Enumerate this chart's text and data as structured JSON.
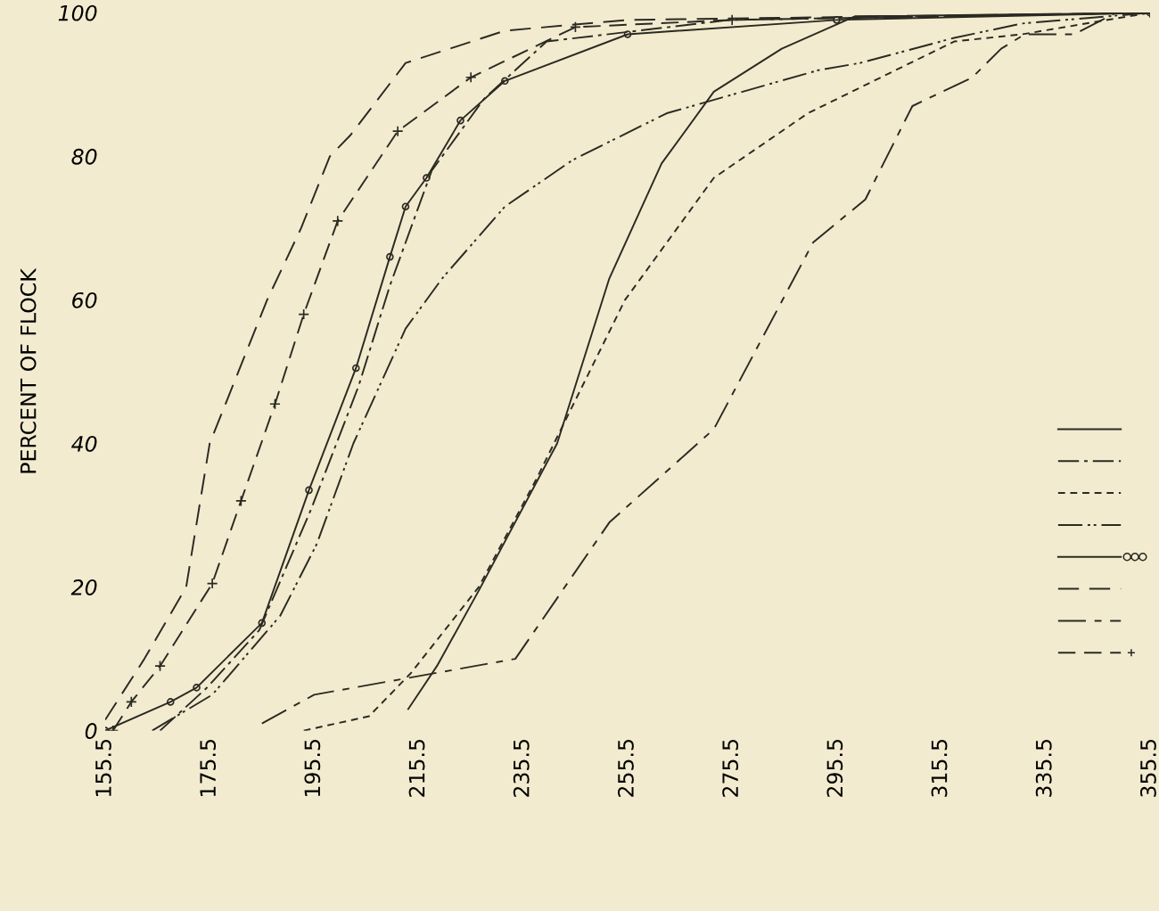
{
  "chart_data": {
    "type": "line",
    "ylabel": "PERCENT OF FLOCK",
    "xlim": [
      155.5,
      355.5
    ],
    "xticks": [
      155.5,
      175.5,
      195.5,
      215.5,
      235.5,
      255.5,
      275.5,
      295.5,
      315.5,
      335.5,
      355.5
    ],
    "ylim": [
      0,
      100
    ],
    "yticks": [
      0,
      20,
      40,
      60,
      80,
      100
    ],
    "grid": false,
    "series": [
      {
        "color": "#2b2a22",
        "line_style": "solid",
        "x": [
          213.5,
          219,
          227,
          242,
          252,
          262,
          272,
          285,
          299,
          355.5
        ],
        "values": [
          3,
          9,
          19.5,
          40,
          63,
          79,
          89,
          95,
          99.5,
          100
        ]
      },
      {
        "color": "#2b2a22",
        "line_style": "dashdot",
        "x": [
          166,
          175,
          185,
          195,
          204,
          210,
          218,
          228,
          240,
          275,
          355.5
        ],
        "values": [
          0,
          6,
          14,
          31,
          48,
          62,
          78,
          88,
          96,
          99,
          100
        ]
      },
      {
        "color": "#2b2a22",
        "line_style": "dashed",
        "x": [
          193.5,
          206,
          214,
          227,
          238,
          255,
          272,
          290,
          318,
          331,
          355.5
        ],
        "values": [
          0,
          2,
          8,
          20,
          35,
          60,
          77,
          86,
          96,
          97,
          100
        ]
      },
      {
        "color": "#2b2a22",
        "line_style": "dashdotdot",
        "x": [
          164.5,
          176,
          189,
          196,
          203,
          213,
          220,
          232,
          245,
          263,
          292,
          300,
          318,
          331,
          355.5
        ],
        "values": [
          0,
          5,
          16,
          26,
          40,
          56,
          63,
          73,
          79.5,
          86,
          92,
          93,
          96.5,
          98.5,
          100
        ]
      },
      {
        "color": "#2b2a22",
        "line_style": "solid",
        "marker": "circle",
        "x": [
          155.5,
          168,
          173,
          185.5,
          194.5,
          203.5,
          210,
          213,
          217,
          223.5,
          232,
          255.5,
          295.5,
          355.5
        ],
        "values": [
          0,
          4,
          6,
          15,
          33.5,
          50.5,
          66,
          73,
          77,
          85,
          90.5,
          97,
          99,
          100
        ]
      },
      {
        "color": "#2b2a22",
        "line_style": "longdash",
        "x": [
          155.5,
          163,
          171,
          175.5,
          186.5,
          193,
          198.5,
          202.5,
          213,
          232,
          255.5,
          355.5
        ],
        "values": [
          1.5,
          10,
          20,
          40,
          60,
          70,
          80,
          83,
          93,
          97.5,
          99,
          100
        ]
      },
      {
        "color": "#2b2a22",
        "line_style": "longshort",
        "x": [
          185.5,
          195.5,
          234,
          252,
          272,
          291,
          301,
          310,
          321.5,
          327,
          331.5,
          341,
          349,
          355.5
        ],
        "values": [
          1,
          5,
          10,
          29,
          42,
          68,
          74,
          87,
          91,
          95,
          97,
          97,
          100,
          100
        ]
      },
      {
        "color": "#2b2a22",
        "line_style": "dashed_long",
        "marker": "cross",
        "x": [
          157,
          160.5,
          166,
          176,
          181.5,
          188,
          193.5,
          200,
          211.5,
          225.5,
          245.5,
          275.5,
          355.5
        ],
        "values": [
          0,
          4,
          9,
          20.5,
          32,
          45.5,
          58,
          71,
          83.5,
          91,
          98,
          99,
          100
        ]
      }
    ]
  }
}
